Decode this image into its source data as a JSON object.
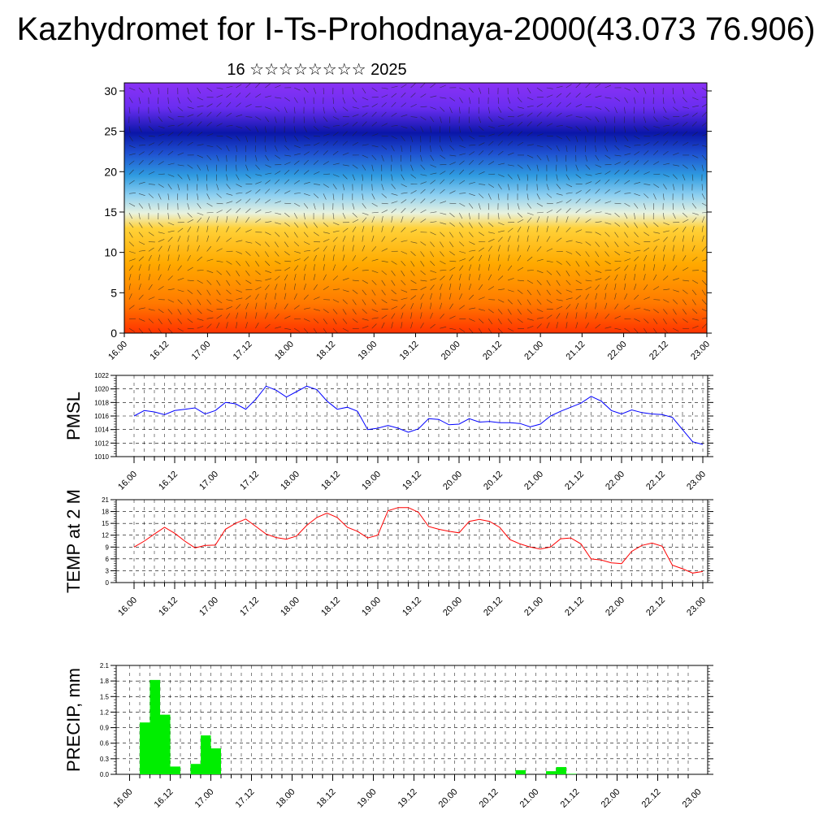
{
  "title": "Kazhydromet for I-Ts-Prohodnaya-2000(43.073 76.906)",
  "subtitle": "16 ☆☆☆☆☆☆☆☆ 2025",
  "time_labels": [
    "16.00",
    "16.12",
    "17.00",
    "17.12",
    "18.00",
    "18.12",
    "19.00",
    "19.12",
    "20.00",
    "20.12",
    "21.00",
    "21.12",
    "22.00",
    "22.12",
    "23.00"
  ],
  "chart_data": [
    {
      "id": "cross-section",
      "type": "heatmap",
      "title": "",
      "ylabel": "",
      "ylim": [
        0,
        31
      ],
      "yticks": [
        0,
        5,
        10,
        15,
        20,
        25,
        30
      ],
      "x": [
        "16.00",
        "16.12",
        "17.00",
        "17.12",
        "18.00",
        "18.12",
        "19.00",
        "19.12",
        "20.00",
        "20.12",
        "21.00",
        "21.12",
        "22.00",
        "22.12",
        "23.00"
      ],
      "color_scale": [
        "#ff2a00",
        "#ff8c00",
        "#ffb700",
        "#ffe07a",
        "#d9f0f7",
        "#4ab4e6",
        "#1a6bd9",
        "#0a1ab0",
        "#6b2af0",
        "#8a2cf5"
      ],
      "overlay": "wind vectors"
    },
    {
      "id": "pmsl",
      "type": "line",
      "ylabel": "PMSL",
      "ylim": [
        1010,
        1022
      ],
      "yticks": [
        1010,
        1012,
        1014,
        1016,
        1018,
        1020,
        1022
      ],
      "color": "#0000ff",
      "x_step_hours": 3,
      "values": [
        1016.0,
        1016.8,
        1016.6,
        1016.2,
        1016.8,
        1017.0,
        1017.2,
        1016.3,
        1016.8,
        1018.0,
        1017.8,
        1017.0,
        1018.5,
        1020.4,
        1019.8,
        1018.8,
        1019.6,
        1020.4,
        1019.9,
        1018.2,
        1017.0,
        1017.3,
        1016.7,
        1014.0,
        1014.2,
        1014.6,
        1014.2,
        1013.6,
        1014.1,
        1015.6,
        1015.5,
        1014.7,
        1014.8,
        1015.6,
        1015.1,
        1015.2,
        1015.0,
        1015.0,
        1014.9,
        1014.4,
        1014.8,
        1016.0,
        1016.7,
        1017.3,
        1017.9,
        1018.9,
        1018.2,
        1016.8,
        1016.3,
        1016.9,
        1016.5,
        1016.3,
        1016.2,
        1015.8,
        1014.0,
        1012.2,
        1011.8
      ]
    },
    {
      "id": "temp",
      "type": "line",
      "ylabel": "TEMP at 2 M",
      "ylim": [
        0,
        21
      ],
      "yticks": [
        0,
        3,
        6,
        9,
        12,
        15,
        18,
        21
      ],
      "color": "#ff0000",
      "x_step_hours": 3,
      "values": [
        9.0,
        10.5,
        12.3,
        14.0,
        12.5,
        10.5,
        8.8,
        9.4,
        9.5,
        13.5,
        15.0,
        16.1,
        14.2,
        12.3,
        11.4,
        11.0,
        11.8,
        14.5,
        16.5,
        17.6,
        16.5,
        14.0,
        13.0,
        11.3,
        12.0,
        18.2,
        19.0,
        19.0,
        17.8,
        14.2,
        13.5,
        13.0,
        12.6,
        15.5,
        16.0,
        15.5,
        14.0,
        10.9,
        9.8,
        9.0,
        8.5,
        9.0,
        11.1,
        11.3,
        9.8,
        6.0,
        5.7,
        5.0,
        4.8,
        7.9,
        9.4,
        10.0,
        9.2,
        4.4,
        3.5,
        2.4,
        2.8
      ]
    },
    {
      "id": "precip",
      "type": "bar",
      "ylabel": "PRECIP, mm",
      "ylim": [
        0,
        2.1
      ],
      "yticks": [
        0.0,
        0.3,
        0.6,
        0.9,
        1.2,
        1.5,
        1.8,
        2.1
      ],
      "color": "#00ee00",
      "x_step_hours": 3,
      "values": [
        0,
        1.0,
        1.82,
        1.15,
        0.15,
        0,
        0.2,
        0.75,
        0.5,
        0,
        0,
        0,
        0,
        0,
        0,
        0,
        0,
        0,
        0,
        0,
        0,
        0,
        0,
        0,
        0,
        0,
        0,
        0,
        0,
        0,
        0,
        0,
        0,
        0,
        0,
        0,
        0,
        0,
        0.08,
        0,
        0,
        0.06,
        0.14,
        0.01,
        0,
        0,
        0,
        0,
        0,
        0,
        0,
        0,
        0,
        0,
        0,
        0
      ]
    }
  ]
}
